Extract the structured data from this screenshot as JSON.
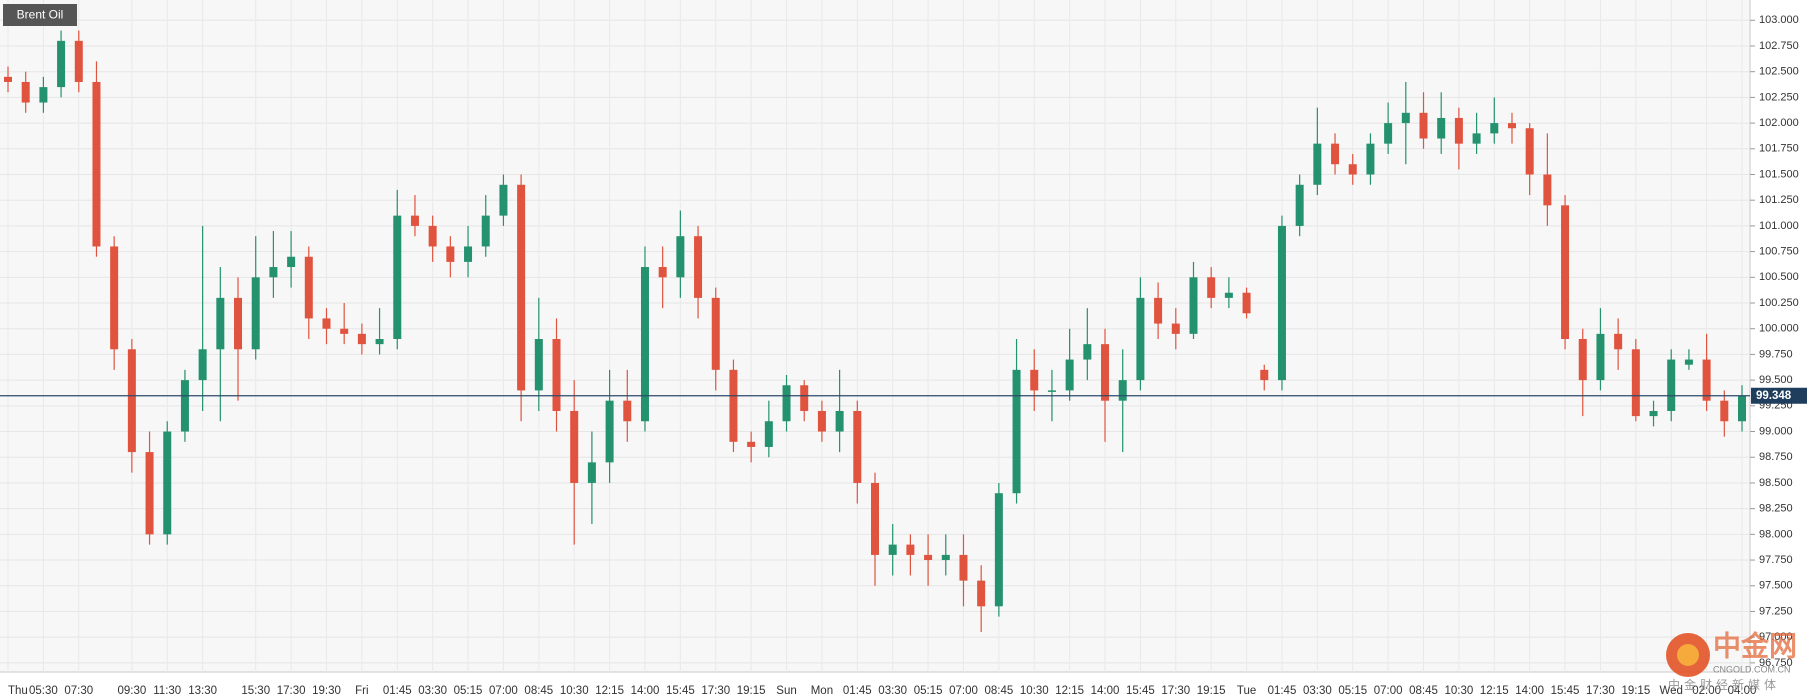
{
  "chart_data": {
    "type": "candlestick",
    "title": "Brent Oil",
    "categories": [
      "Thu",
      null,
      "05:30",
      null,
      "07:30",
      null,
      null,
      "09:30",
      null,
      "11:30",
      null,
      "13:30",
      null,
      null,
      "15:30",
      null,
      "17:30",
      null,
      "19:30",
      null,
      "Fri",
      null,
      "01:45",
      null,
      "03:30",
      null,
      "05:15",
      null,
      "07:00",
      null,
      "08:45",
      null,
      "10:30",
      null,
      "12:15",
      null,
      "14:00",
      null,
      "15:45",
      null,
      "17:30",
      null,
      "19:15",
      null,
      "Sun",
      null,
      "Mon",
      null,
      "01:45",
      null,
      "03:30",
      null,
      "05:15",
      null,
      "07:00",
      null,
      "08:45",
      null,
      "10:30",
      null,
      "12:15",
      null,
      "14:00",
      null,
      "15:45",
      null,
      "17:30",
      null,
      "19:15",
      null,
      "Tue",
      null,
      "01:45",
      null,
      "03:30",
      null,
      "05:15",
      null,
      "07:00",
      null,
      "08:45",
      null,
      "10:30",
      null,
      "12:15",
      null,
      "14:00",
      null,
      "15:45",
      null,
      "17:30",
      null,
      "19:15",
      null,
      "Wed",
      null,
      "02:00",
      null,
      "04:00"
    ],
    "open": [
      102.45,
      102.4,
      102.2,
      102.35,
      102.8,
      102.4,
      100.8,
      99.8,
      98.8,
      98.0,
      99.0,
      99.5,
      99.8,
      100.3,
      99.8,
      100.5,
      100.6,
      100.7,
      100.1,
      100.0,
      99.95,
      99.85,
      99.9,
      101.1,
      101.0,
      100.8,
      100.65,
      100.8,
      101.1,
      101.4,
      99.4,
      99.9,
      99.2,
      98.5,
      98.7,
      99.3,
      99.1,
      100.6,
      100.5,
      100.9,
      100.3,
      99.6,
      98.9,
      98.85,
      99.1,
      99.45,
      99.2,
      99.0,
      99.2,
      98.5,
      97.8,
      97.9,
      97.8,
      97.75,
      97.8,
      97.55,
      97.3,
      98.4,
      99.6,
      99.4,
      99.4,
      99.7,
      99.85,
      99.3,
      99.5,
      100.3,
      100.05,
      99.95,
      100.5,
      100.3,
      100.35,
      99.6,
      99.5,
      101.0,
      101.4,
      101.8,
      101.6,
      101.5,
      101.8,
      102.0,
      102.1,
      101.85,
      102.05,
      101.8,
      101.9,
      102.0,
      101.95,
      101.5,
      101.2,
      99.9,
      99.5,
      99.95,
      99.8,
      99.15,
      99.2,
      99.65,
      99.7,
      99.3,
      99.1
    ],
    "high": [
      102.55,
      102.5,
      102.45,
      102.9,
      102.9,
      102.6,
      100.9,
      99.9,
      99.0,
      99.1,
      99.6,
      101.0,
      100.6,
      100.5,
      100.9,
      100.95,
      100.95,
      100.8,
      100.2,
      100.25,
      100.05,
      100.2,
      101.35,
      101.3,
      101.1,
      100.9,
      101.0,
      101.3,
      101.5,
      101.5,
      100.3,
      100.1,
      99.5,
      99.0,
      99.6,
      99.6,
      100.8,
      100.8,
      101.15,
      101.0,
      100.4,
      99.7,
      99.0,
      99.3,
      99.55,
      99.5,
      99.3,
      99.6,
      99.3,
      98.6,
      98.1,
      98.0,
      98.0,
      98.0,
      98.0,
      97.7,
      98.5,
      99.9,
      99.8,
      99.6,
      100.0,
      100.2,
      100.0,
      99.8,
      100.5,
      100.45,
      100.2,
      100.65,
      100.6,
      100.5,
      100.4,
      99.65,
      101.1,
      101.5,
      102.15,
      101.9,
      101.7,
      101.9,
      102.2,
      102.4,
      102.3,
      102.3,
      102.15,
      102.1,
      102.25,
      102.1,
      102.0,
      101.9,
      101.3,
      100.0,
      100.2,
      100.1,
      99.9,
      99.3,
      99.8,
      99.8,
      99.95,
      99.4,
      99.45
    ],
    "low": [
      102.3,
      102.1,
      102.1,
      102.25,
      102.3,
      100.7,
      99.6,
      98.6,
      97.9,
      97.9,
      98.9,
      99.2,
      99.1,
      99.3,
      99.7,
      100.3,
      100.4,
      99.9,
      99.85,
      99.85,
      99.75,
      99.75,
      99.8,
      100.9,
      100.65,
      100.5,
      100.5,
      100.7,
      101.0,
      99.1,
      99.2,
      99.0,
      97.9,
      98.1,
      98.5,
      98.9,
      99.0,
      100.2,
      100.3,
      100.1,
      99.4,
      98.8,
      98.7,
      98.75,
      99.0,
      99.1,
      98.9,
      98.8,
      98.3,
      97.5,
      97.6,
      97.6,
      97.5,
      97.6,
      97.3,
      97.05,
      97.2,
      98.3,
      99.2,
      99.1,
      99.3,
      99.5,
      98.9,
      98.8,
      99.4,
      99.9,
      99.8,
      99.9,
      100.2,
      100.2,
      100.1,
      99.4,
      99.4,
      100.9,
      101.3,
      101.5,
      101.4,
      101.4,
      101.7,
      101.6,
      101.75,
      101.7,
      101.55,
      101.7,
      101.8,
      101.8,
      101.3,
      101.0,
      99.8,
      99.15,
      99.4,
      99.6,
      99.1,
      99.05,
      99.1,
      99.6,
      99.2,
      98.95,
      99.0
    ],
    "close": [
      102.4,
      102.2,
      102.35,
      102.8,
      102.4,
      100.8,
      99.8,
      98.8,
      98.0,
      99.0,
      99.5,
      99.8,
      100.3,
      99.8,
      100.5,
      100.6,
      100.7,
      100.1,
      100.0,
      99.95,
      99.85,
      99.9,
      101.1,
      101.0,
      100.8,
      100.65,
      100.8,
      101.1,
      101.4,
      99.4,
      99.9,
      99.2,
      98.5,
      98.7,
      99.3,
      99.1,
      100.6,
      100.5,
      100.9,
      100.3,
      99.6,
      98.9,
      98.85,
      99.1,
      99.45,
      99.2,
      99.0,
      99.2,
      98.5,
      97.8,
      97.9,
      97.8,
      97.75,
      97.8,
      97.55,
      97.3,
      98.4,
      99.6,
      99.4,
      99.4,
      99.7,
      99.85,
      99.3,
      99.5,
      100.3,
      100.05,
      99.95,
      100.5,
      100.3,
      100.35,
      100.15,
      99.5,
      101.0,
      101.4,
      101.8,
      101.6,
      101.5,
      101.8,
      102.0,
      102.1,
      101.85,
      102.05,
      101.8,
      101.9,
      102.0,
      101.95,
      101.5,
      101.2,
      99.9,
      99.5,
      99.95,
      99.8,
      99.15,
      99.2,
      99.7,
      99.7,
      99.3,
      99.1,
      99.348
    ],
    "up_color": "#24926f",
    "down_color": "#e0533f",
    "last_price": 99.348,
    "ylim": [
      96.7,
      103.1
    ],
    "yticks": [
      {
        "value": 96.75,
        "label": "96.750"
      },
      {
        "value": 97,
        "label": "97.000"
      },
      {
        "value": 97.25,
        "label": "97.250"
      },
      {
        "value": 97.5,
        "label": "97.500"
      },
      {
        "value": 97.75,
        "label": "97.750"
      },
      {
        "value": 98,
        "label": "98.000"
      },
      {
        "value": 98.25,
        "label": "98.250"
      },
      {
        "value": 98.5,
        "label": "98.500"
      },
      {
        "value": 98.75,
        "label": "98.750"
      },
      {
        "value": 99,
        "label": "99.000"
      },
      {
        "value": 99.25,
        "label": "99.250"
      },
      {
        "value": 99.5,
        "label": "99.500"
      },
      {
        "value": 99.75,
        "label": "99.750"
      },
      {
        "value": 100,
        "label": "100.000"
      },
      {
        "value": 100.25,
        "label": "100.250"
      },
      {
        "value": 100.5,
        "label": "100.500"
      },
      {
        "value": 100.75,
        "label": "100.750"
      },
      {
        "value": 101,
        "label": "101.000"
      },
      {
        "value": 101.25,
        "label": "101.250"
      },
      {
        "value": 101.5,
        "label": "101.500"
      },
      {
        "value": 101.75,
        "label": "101.750"
      },
      {
        "value": 102,
        "label": "102.000"
      },
      {
        "value": 102.25,
        "label": "102.250"
      },
      {
        "value": 102.5,
        "label": "102.500"
      },
      {
        "value": 102.75,
        "label": "102.750"
      },
      {
        "value": 103,
        "label": "103.000"
      }
    ],
    "grid": true
  },
  "watermark": {
    "brand": "中金网",
    "site": "CNGOLD.COM.CN",
    "slogan": "中金财经新媒体"
  }
}
